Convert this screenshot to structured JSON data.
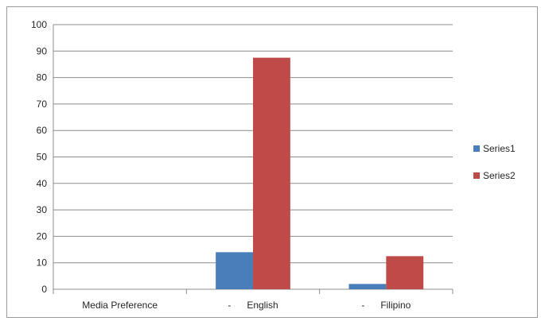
{
  "chart_data": {
    "type": "bar",
    "categories": [
      "Media Preference",
      "-      English",
      "-      Filipino"
    ],
    "series": [
      {
        "name": "Series1",
        "values": [
          0,
          14,
          2
        ],
        "color": "#4a7ebb"
      },
      {
        "name": "Series2",
        "values": [
          0,
          87.5,
          12.5
        ],
        "color": "#be4b48"
      }
    ],
    "title": "",
    "xlabel": "",
    "ylabel": "",
    "ylim": [
      0,
      100
    ],
    "yticks": [
      "0",
      "10",
      "20",
      "30",
      "40",
      "50",
      "60",
      "70",
      "80",
      "90",
      "100"
    ],
    "grid": true,
    "legend_position": "right"
  }
}
